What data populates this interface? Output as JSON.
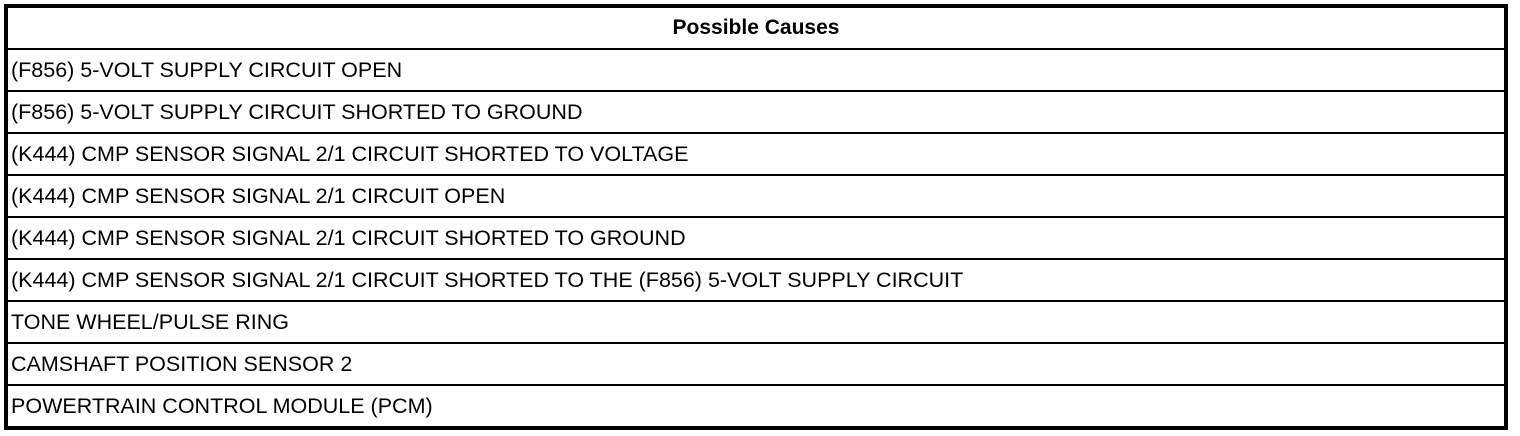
{
  "table": {
    "header": "Possible Causes",
    "rows": [
      "(F856) 5-VOLT SUPPLY CIRCUIT OPEN",
      "(F856) 5-VOLT SUPPLY CIRCUIT SHORTED TO GROUND",
      "(K444) CMP SENSOR SIGNAL 2/1 CIRCUIT SHORTED TO VOLTAGE",
      "(K444) CMP SENSOR SIGNAL 2/1 CIRCUIT OPEN",
      "(K444) CMP SENSOR SIGNAL 2/1 CIRCUIT SHORTED TO GROUND",
      "(K444) CMP SENSOR SIGNAL 2/1 CIRCUIT SHORTED TO THE (F856) 5-VOLT SUPPLY CIRCUIT",
      "TONE WHEEL/PULSE RING",
      "CAMSHAFT POSITION SENSOR 2",
      "POWERTRAIN CONTROL MODULE (PCM)"
    ]
  }
}
